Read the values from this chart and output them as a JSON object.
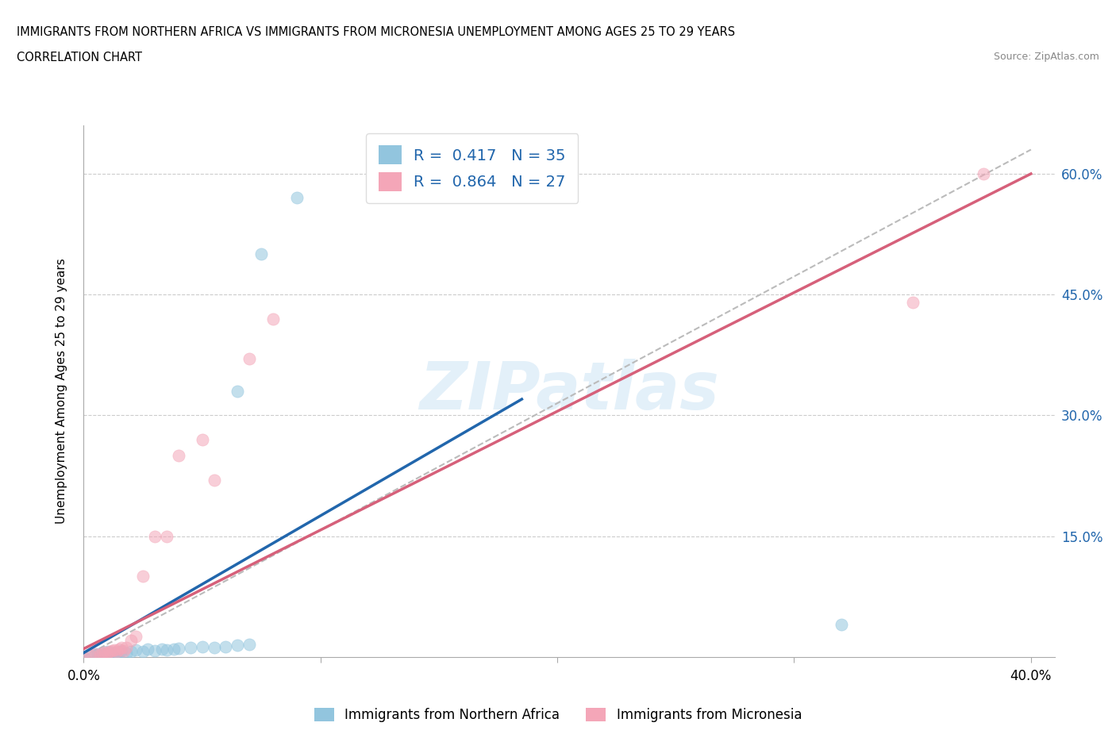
{
  "title_line1": "IMMIGRANTS FROM NORTHERN AFRICA VS IMMIGRANTS FROM MICRONESIA UNEMPLOYMENT AMONG AGES 25 TO 29 YEARS",
  "title_line2": "CORRELATION CHART",
  "source_text": "Source: ZipAtlas.com",
  "ylabel": "Unemployment Among Ages 25 to 29 years",
  "r_blue": "0.417",
  "n_blue": "35",
  "r_pink": "0.864",
  "n_pink": "27",
  "xlim": [
    0.0,
    0.41
  ],
  "ylim": [
    0.0,
    0.66
  ],
  "y_ticks": [
    0.0,
    0.15,
    0.3,
    0.45,
    0.6
  ],
  "x_ticks": [
    0.0,
    0.1,
    0.2,
    0.3,
    0.4
  ],
  "color_blue": "#92c5de",
  "color_pink": "#f4a6b8",
  "color_blue_line": "#2166ac",
  "color_pink_line": "#d6607a",
  "color_diag": "#bbbbbb",
  "watermark": "ZIPatlas",
  "blue_scatter": [
    [
      0.0,
      0.0
    ],
    [
      0.003,
      0.002
    ],
    [
      0.005,
      0.003
    ],
    [
      0.006,
      0.004
    ],
    [
      0.007,
      0.002
    ],
    [
      0.008,
      0.005
    ],
    [
      0.009,
      0.003
    ],
    [
      0.01,
      0.004
    ],
    [
      0.01,
      0.007
    ],
    [
      0.012,
      0.003
    ],
    [
      0.012,
      0.006
    ],
    [
      0.013,
      0.005
    ],
    [
      0.014,
      0.004
    ],
    [
      0.015,
      0.006
    ],
    [
      0.016,
      0.008
    ],
    [
      0.018,
      0.005
    ],
    [
      0.02,
      0.007
    ],
    [
      0.022,
      0.009
    ],
    [
      0.025,
      0.007
    ],
    [
      0.027,
      0.01
    ],
    [
      0.03,
      0.008
    ],
    [
      0.033,
      0.01
    ],
    [
      0.035,
      0.009
    ],
    [
      0.038,
      0.01
    ],
    [
      0.04,
      0.011
    ],
    [
      0.045,
      0.012
    ],
    [
      0.05,
      0.013
    ],
    [
      0.055,
      0.012
    ],
    [
      0.06,
      0.013
    ],
    [
      0.065,
      0.014
    ],
    [
      0.07,
      0.015
    ],
    [
      0.32,
      0.04
    ],
    [
      0.065,
      0.33
    ],
    [
      0.075,
      0.5
    ],
    [
      0.09,
      0.57
    ]
  ],
  "pink_scatter": [
    [
      0.0,
      0.0
    ],
    [
      0.003,
      0.002
    ],
    [
      0.005,
      0.004
    ],
    [
      0.007,
      0.003
    ],
    [
      0.008,
      0.005
    ],
    [
      0.009,
      0.006
    ],
    [
      0.01,
      0.005
    ],
    [
      0.011,
      0.007
    ],
    [
      0.012,
      0.008
    ],
    [
      0.013,
      0.009
    ],
    [
      0.014,
      0.007
    ],
    [
      0.015,
      0.01
    ],
    [
      0.016,
      0.012
    ],
    [
      0.017,
      0.008
    ],
    [
      0.018,
      0.012
    ],
    [
      0.02,
      0.02
    ],
    [
      0.022,
      0.025
    ],
    [
      0.025,
      0.1
    ],
    [
      0.03,
      0.15
    ],
    [
      0.035,
      0.15
    ],
    [
      0.04,
      0.25
    ],
    [
      0.05,
      0.27
    ],
    [
      0.055,
      0.22
    ],
    [
      0.07,
      0.37
    ],
    [
      0.08,
      0.42
    ],
    [
      0.35,
      0.44
    ],
    [
      0.38,
      0.6
    ]
  ],
  "blue_line": [
    [
      0.0,
      0.005
    ],
    [
      0.185,
      0.32
    ]
  ],
  "pink_line": [
    [
      0.0,
      0.01
    ],
    [
      0.4,
      0.6
    ]
  ],
  "diag_line": [
    [
      0.0,
      0.0
    ],
    [
      0.4,
      0.63
    ]
  ]
}
